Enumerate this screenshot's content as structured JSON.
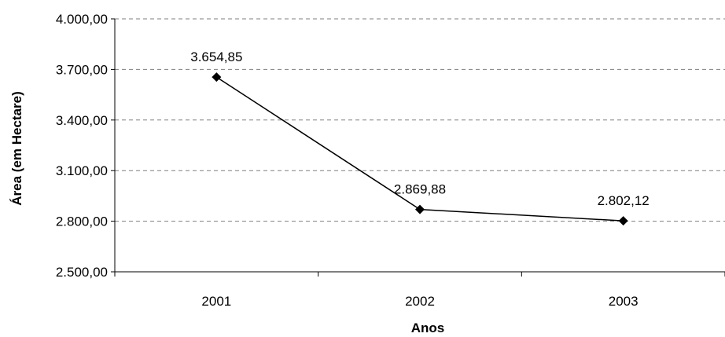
{
  "chart_data": {
    "type": "line",
    "title": "",
    "xlabel": "Anos",
    "ylabel": "Área (em Hectare)",
    "categories": [
      "2001",
      "2002",
      "2003"
    ],
    "series": [
      {
        "values": [
          3654.85,
          2869.88,
          2802.12
        ]
      }
    ],
    "data_labels": [
      "3.654,85",
      "2.869,88",
      "2.802,12"
    ],
    "ylim": [
      2500,
      4000
    ],
    "yticks": [
      2500,
      2800,
      3100,
      3400,
      3700,
      4000
    ],
    "ytick_labels": [
      "2.500,00",
      "2.800,00",
      "3.100,00",
      "3.400,00",
      "3.700,00",
      "4.000,00"
    ],
    "grid": "horizontal dashed",
    "marker": "diamond",
    "line_color": "#000000"
  }
}
